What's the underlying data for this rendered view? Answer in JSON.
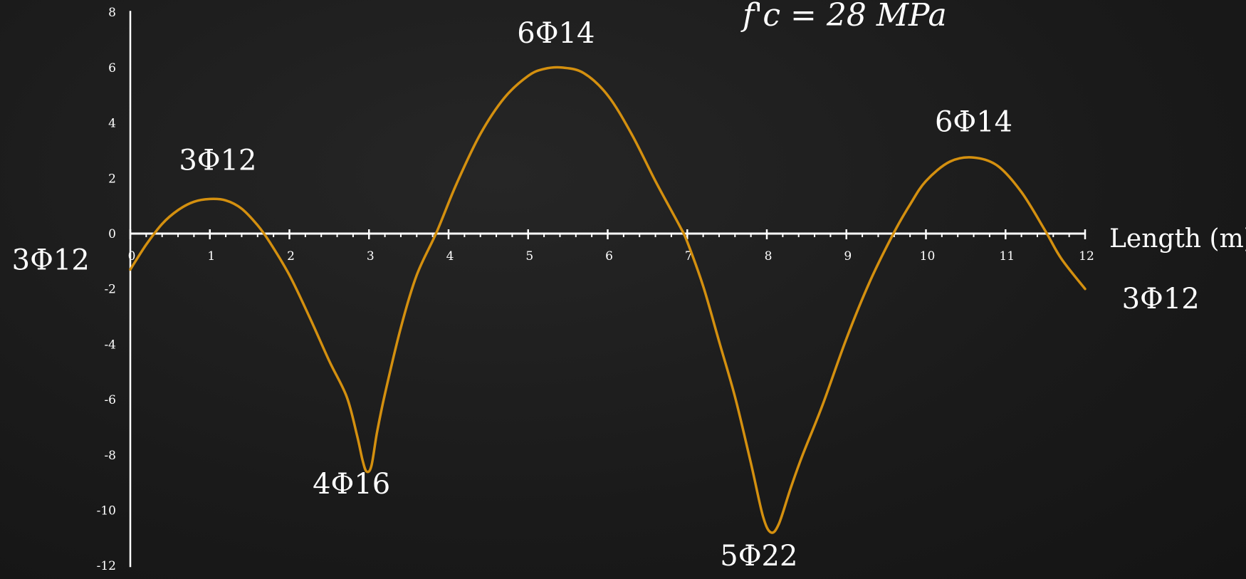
{
  "chart_data": {
    "type": "line",
    "title": "",
    "xlabel": "Length (m)",
    "ylabel": "",
    "xlim": [
      0,
      12
    ],
    "ylim": [
      -12,
      8
    ],
    "x_ticks": [
      0,
      1,
      2,
      3,
      4,
      5,
      6,
      7,
      8,
      9,
      10,
      11,
      12
    ],
    "y_ticks": [
      8,
      6,
      4,
      2,
      0,
      -2,
      -4,
      -6,
      -8,
      -10,
      -12
    ],
    "grid": false,
    "colors": {
      "line": "#D4900F",
      "axis": "#ffffff",
      "text": "#ffffff",
      "background": "#1b1b1b"
    },
    "series": [
      {
        "x": [
          0,
          0.2,
          0.4,
          0.6,
          0.8,
          1.0,
          1.2,
          1.4,
          1.6,
          1.75,
          2.0,
          2.25,
          2.5,
          2.72,
          2.85,
          2.92,
          2.97,
          3.03,
          3.1,
          3.2,
          3.4,
          3.6,
          3.85,
          4.1,
          4.4,
          4.7,
          5.0,
          5.2,
          5.43,
          5.7,
          6.0,
          6.3,
          6.6,
          6.9,
          7.0,
          7.2,
          7.4,
          7.6,
          7.8,
          7.95,
          8.05,
          8.15,
          8.3,
          8.45,
          8.7,
          9.0,
          9.3,
          9.6,
          9.8,
          10.0,
          10.3,
          10.6,
          10.9,
          11.2,
          11.5,
          11.7,
          12.0
        ],
        "y": [
          -1.3,
          -0.4,
          0.35,
          0.85,
          1.15,
          1.25,
          1.2,
          0.9,
          0.3,
          -0.3,
          -1.5,
          -3.0,
          -4.6,
          -5.9,
          -7.3,
          -8.2,
          -8.6,
          -8.4,
          -7.2,
          -5.8,
          -3.4,
          -1.5,
          0.05,
          1.8,
          3.6,
          4.9,
          5.7,
          5.95,
          6.0,
          5.8,
          5.0,
          3.6,
          1.9,
          0.3,
          -0.3,
          -1.9,
          -3.9,
          -5.9,
          -8.3,
          -10.2,
          -10.8,
          -10.5,
          -9.2,
          -8.0,
          -6.2,
          -3.8,
          -1.7,
          0.05,
          1.05,
          1.9,
          2.6,
          2.75,
          2.45,
          1.5,
          0.1,
          -0.9,
          -2.0
        ]
      }
    ],
    "annotations": [
      {
        "text": "3Φ12",
        "x": 1.1,
        "y": 2.3,
        "anchor": "middle"
      },
      {
        "text": "6Φ14",
        "x": 5.35,
        "y": 6.9,
        "anchor": "middle"
      },
      {
        "text": "6Φ14",
        "x": 10.6,
        "y": 3.7,
        "anchor": "middle"
      },
      {
        "text": "4Φ16",
        "x": 2.78,
        "y": -9.4,
        "anchor": "middle"
      },
      {
        "text": "5Φ22",
        "x": 7.9,
        "y": -12.0,
        "anchor": "middle"
      },
      {
        "text": "3Φ12",
        "x": -1.0,
        "y": -1.3,
        "anchor": "middle"
      },
      {
        "text": "3Φ12",
        "x": 12.95,
        "y": -2.7,
        "anchor": "middle"
      }
    ],
    "formula": "f'c = 28 MPa"
  }
}
